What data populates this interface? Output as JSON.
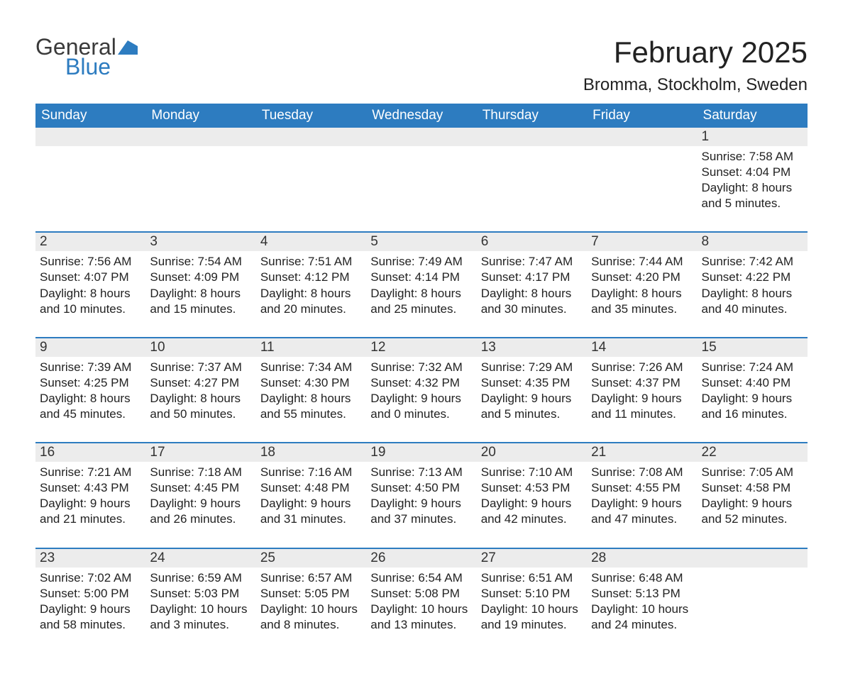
{
  "logo": {
    "text1": "General",
    "text2": "Blue",
    "icon_color": "#2d7cc0"
  },
  "title": "February 2025",
  "location": "Bromma, Stockholm, Sweden",
  "colors": {
    "header_bg": "#2d7cc0",
    "header_text": "#ffffff",
    "daynum_bg": "#ececec",
    "row_divider": "#2d7cc0",
    "text": "#222222"
  },
  "day_headers": [
    "Sunday",
    "Monday",
    "Tuesday",
    "Wednesday",
    "Thursday",
    "Friday",
    "Saturday"
  ],
  "weeks": [
    [
      null,
      null,
      null,
      null,
      null,
      null,
      {
        "n": "1",
        "sunrise": "Sunrise: 7:58 AM",
        "sunset": "Sunset: 4:04 PM",
        "day1": "Daylight: 8 hours",
        "day2": "and 5 minutes."
      }
    ],
    [
      {
        "n": "2",
        "sunrise": "Sunrise: 7:56 AM",
        "sunset": "Sunset: 4:07 PM",
        "day1": "Daylight: 8 hours",
        "day2": "and 10 minutes."
      },
      {
        "n": "3",
        "sunrise": "Sunrise: 7:54 AM",
        "sunset": "Sunset: 4:09 PM",
        "day1": "Daylight: 8 hours",
        "day2": "and 15 minutes."
      },
      {
        "n": "4",
        "sunrise": "Sunrise: 7:51 AM",
        "sunset": "Sunset: 4:12 PM",
        "day1": "Daylight: 8 hours",
        "day2": "and 20 minutes."
      },
      {
        "n": "5",
        "sunrise": "Sunrise: 7:49 AM",
        "sunset": "Sunset: 4:14 PM",
        "day1": "Daylight: 8 hours",
        "day2": "and 25 minutes."
      },
      {
        "n": "6",
        "sunrise": "Sunrise: 7:47 AM",
        "sunset": "Sunset: 4:17 PM",
        "day1": "Daylight: 8 hours",
        "day2": "and 30 minutes."
      },
      {
        "n": "7",
        "sunrise": "Sunrise: 7:44 AM",
        "sunset": "Sunset: 4:20 PM",
        "day1": "Daylight: 8 hours",
        "day2": "and 35 minutes."
      },
      {
        "n": "8",
        "sunrise": "Sunrise: 7:42 AM",
        "sunset": "Sunset: 4:22 PM",
        "day1": "Daylight: 8 hours",
        "day2": "and 40 minutes."
      }
    ],
    [
      {
        "n": "9",
        "sunrise": "Sunrise: 7:39 AM",
        "sunset": "Sunset: 4:25 PM",
        "day1": "Daylight: 8 hours",
        "day2": "and 45 minutes."
      },
      {
        "n": "10",
        "sunrise": "Sunrise: 7:37 AM",
        "sunset": "Sunset: 4:27 PM",
        "day1": "Daylight: 8 hours",
        "day2": "and 50 minutes."
      },
      {
        "n": "11",
        "sunrise": "Sunrise: 7:34 AM",
        "sunset": "Sunset: 4:30 PM",
        "day1": "Daylight: 8 hours",
        "day2": "and 55 minutes."
      },
      {
        "n": "12",
        "sunrise": "Sunrise: 7:32 AM",
        "sunset": "Sunset: 4:32 PM",
        "day1": "Daylight: 9 hours",
        "day2": "and 0 minutes."
      },
      {
        "n": "13",
        "sunrise": "Sunrise: 7:29 AM",
        "sunset": "Sunset: 4:35 PM",
        "day1": "Daylight: 9 hours",
        "day2": "and 5 minutes."
      },
      {
        "n": "14",
        "sunrise": "Sunrise: 7:26 AM",
        "sunset": "Sunset: 4:37 PM",
        "day1": "Daylight: 9 hours",
        "day2": "and 11 minutes."
      },
      {
        "n": "15",
        "sunrise": "Sunrise: 7:24 AM",
        "sunset": "Sunset: 4:40 PM",
        "day1": "Daylight: 9 hours",
        "day2": "and 16 minutes."
      }
    ],
    [
      {
        "n": "16",
        "sunrise": "Sunrise: 7:21 AM",
        "sunset": "Sunset: 4:43 PM",
        "day1": "Daylight: 9 hours",
        "day2": "and 21 minutes."
      },
      {
        "n": "17",
        "sunrise": "Sunrise: 7:18 AM",
        "sunset": "Sunset: 4:45 PM",
        "day1": "Daylight: 9 hours",
        "day2": "and 26 minutes."
      },
      {
        "n": "18",
        "sunrise": "Sunrise: 7:16 AM",
        "sunset": "Sunset: 4:48 PM",
        "day1": "Daylight: 9 hours",
        "day2": "and 31 minutes."
      },
      {
        "n": "19",
        "sunrise": "Sunrise: 7:13 AM",
        "sunset": "Sunset: 4:50 PM",
        "day1": "Daylight: 9 hours",
        "day2": "and 37 minutes."
      },
      {
        "n": "20",
        "sunrise": "Sunrise: 7:10 AM",
        "sunset": "Sunset: 4:53 PM",
        "day1": "Daylight: 9 hours",
        "day2": "and 42 minutes."
      },
      {
        "n": "21",
        "sunrise": "Sunrise: 7:08 AM",
        "sunset": "Sunset: 4:55 PM",
        "day1": "Daylight: 9 hours",
        "day2": "and 47 minutes."
      },
      {
        "n": "22",
        "sunrise": "Sunrise: 7:05 AM",
        "sunset": "Sunset: 4:58 PM",
        "day1": "Daylight: 9 hours",
        "day2": "and 52 minutes."
      }
    ],
    [
      {
        "n": "23",
        "sunrise": "Sunrise: 7:02 AM",
        "sunset": "Sunset: 5:00 PM",
        "day1": "Daylight: 9 hours",
        "day2": "and 58 minutes."
      },
      {
        "n": "24",
        "sunrise": "Sunrise: 6:59 AM",
        "sunset": "Sunset: 5:03 PM",
        "day1": "Daylight: 10 hours",
        "day2": "and 3 minutes."
      },
      {
        "n": "25",
        "sunrise": "Sunrise: 6:57 AM",
        "sunset": "Sunset: 5:05 PM",
        "day1": "Daylight: 10 hours",
        "day2": "and 8 minutes."
      },
      {
        "n": "26",
        "sunrise": "Sunrise: 6:54 AM",
        "sunset": "Sunset: 5:08 PM",
        "day1": "Daylight: 10 hours",
        "day2": "and 13 minutes."
      },
      {
        "n": "27",
        "sunrise": "Sunrise: 6:51 AM",
        "sunset": "Sunset: 5:10 PM",
        "day1": "Daylight: 10 hours",
        "day2": "and 19 minutes."
      },
      {
        "n": "28",
        "sunrise": "Sunrise: 6:48 AM",
        "sunset": "Sunset: 5:13 PM",
        "day1": "Daylight: 10 hours",
        "day2": "and 24 minutes."
      },
      null
    ]
  ]
}
